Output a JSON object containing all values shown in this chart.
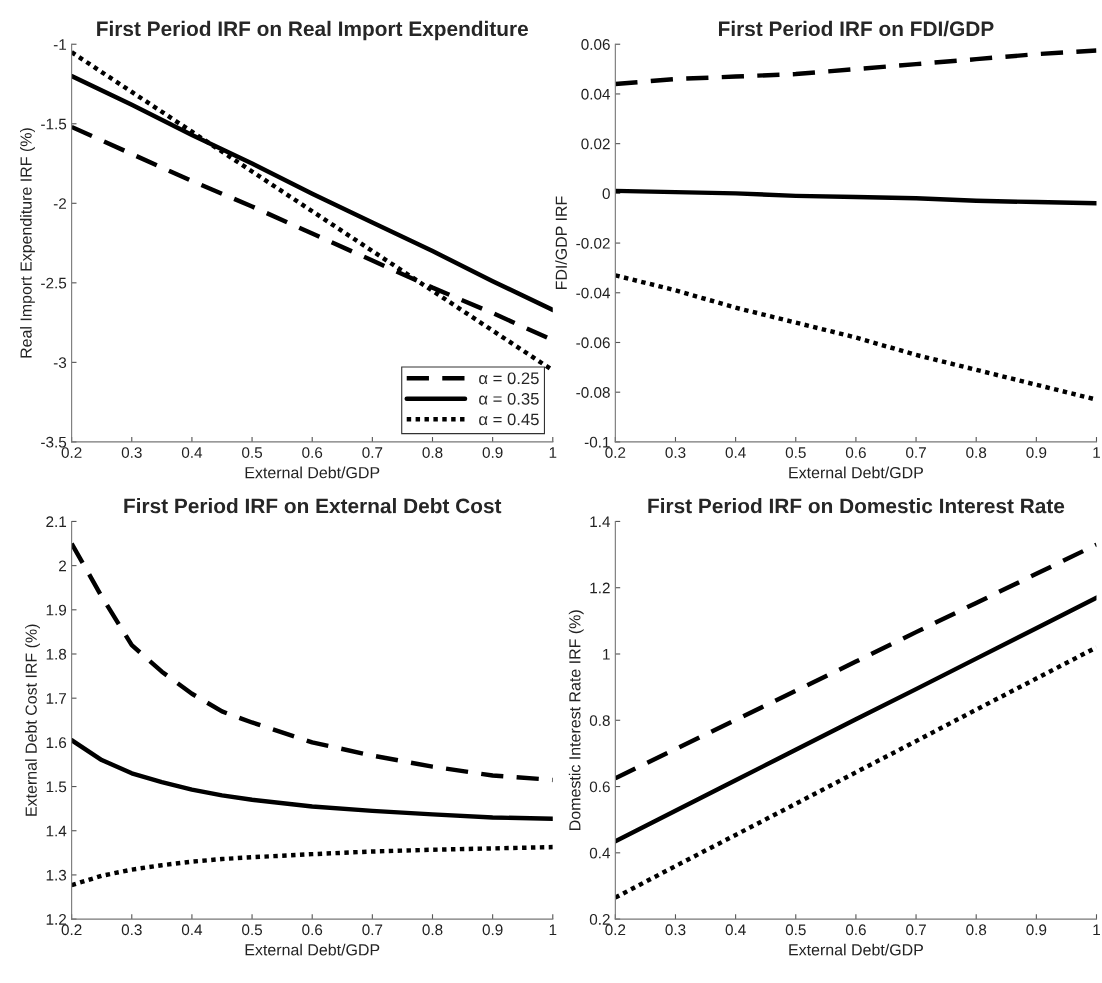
{
  "chart_data": [
    {
      "type": "line",
      "title": "First Period IRF on Real Import Expenditure",
      "xlabel": "External Debt/GDP",
      "ylabel": "Real Import Expenditure IRF (%)",
      "x": [
        0.2,
        0.3,
        0.4,
        0.5,
        0.6,
        0.7,
        0.8,
        0.9,
        1
      ],
      "xlim": [
        0.2,
        1
      ],
      "xticks": [
        0.2,
        0.3,
        0.4,
        0.5,
        0.6,
        0.7,
        0.8,
        0.9,
        1
      ],
      "ylim": [
        -3.5,
        -1
      ],
      "yticks": [
        -3.5,
        -3,
        -2.5,
        -2,
        -1.5,
        -1
      ],
      "grid": false,
      "legend": "bottom right",
      "series": [
        {
          "name": "α = 0.25",
          "color": "#000000",
          "line_style": "dashed",
          "values": [
            -1.52,
            -1.69,
            -1.86,
            -2.02,
            -2.19,
            -2.36,
            -2.53,
            -2.69,
            -2.86
          ]
        },
        {
          "name": "α = 0.35",
          "color": "#000000",
          "line_style": "solid",
          "values": [
            -1.2,
            -1.38,
            -1.57,
            -1.75,
            -1.94,
            -2.12,
            -2.3,
            -2.49,
            -2.67
          ]
        },
        {
          "name": "α = 0.45",
          "color": "#000000",
          "line_style": "dotted",
          "values": [
            -1.05,
            -1.3,
            -1.55,
            -1.8,
            -2.05,
            -2.3,
            -2.55,
            -2.8,
            -3.05
          ]
        }
      ]
    },
    {
      "type": "line",
      "title": "First Period IRF on FDI/GDP",
      "xlabel": "External Debt/GDP",
      "ylabel": "FDI/GDP IRF",
      "x": [
        0.2,
        0.3,
        0.4,
        0.5,
        0.6,
        0.7,
        0.8,
        0.9,
        1
      ],
      "xlim": [
        0.2,
        1
      ],
      "xticks": [
        0.2,
        0.3,
        0.4,
        0.5,
        0.6,
        0.7,
        0.8,
        0.9,
        1
      ],
      "ylim": [
        -0.1,
        0.06
      ],
      "yticks": [
        -0.1,
        -0.08,
        -0.06,
        -0.04,
        -0.02,
        0,
        0.02,
        0.04,
        0.06
      ],
      "grid": false,
      "series": [
        {
          "color": "#000000",
          "line_style": "dashed",
          "values": [
            0.044,
            0.046,
            0.047,
            0.048,
            0.05,
            0.052,
            0.054,
            0.056,
            0.0575
          ]
        },
        {
          "color": "#000000",
          "line_style": "solid",
          "values": [
            0.001,
            0.0005,
            0,
            -0.001,
            -0.0015,
            -0.002,
            -0.003,
            -0.0035,
            -0.004
          ]
        },
        {
          "color": "#000000",
          "line_style": "dotted",
          "values": [
            -0.033,
            -0.039,
            -0.046,
            -0.052,
            -0.058,
            -0.065,
            -0.071,
            -0.077,
            -0.083
          ]
        }
      ]
    },
    {
      "type": "line",
      "title": "First Period IRF on External Debt Cost",
      "xlabel": "External Debt/GDP",
      "ylabel": "External Debt Cost IRF (%)",
      "x": [
        0.2,
        0.25,
        0.3,
        0.35,
        0.4,
        0.45,
        0.5,
        0.6,
        0.7,
        0.8,
        0.9,
        1
      ],
      "xlim": [
        0.2,
        1
      ],
      "xticks": [
        0.2,
        0.3,
        0.4,
        0.5,
        0.6,
        0.7,
        0.8,
        0.9,
        1
      ],
      "ylim": [
        1.2,
        2.1
      ],
      "yticks": [
        1.2,
        1.3,
        1.4,
        1.5,
        1.6,
        1.7,
        1.8,
        1.9,
        2,
        2.1
      ],
      "grid": false,
      "series": [
        {
          "color": "#000000",
          "line_style": "dashed",
          "values": [
            2.05,
            1.93,
            1.82,
            1.76,
            1.71,
            1.67,
            1.645,
            1.6,
            1.57,
            1.545,
            1.525,
            1.515
          ]
        },
        {
          "color": "#000000",
          "line_style": "solid",
          "values": [
            1.605,
            1.56,
            1.53,
            1.51,
            1.493,
            1.48,
            1.47,
            1.455,
            1.445,
            1.437,
            1.43,
            1.427
          ]
        },
        {
          "color": "#000000",
          "line_style": "dotted",
          "values": [
            1.277,
            1.298,
            1.312,
            1.322,
            1.33,
            1.336,
            1.34,
            1.347,
            1.353,
            1.357,
            1.36,
            1.363
          ]
        }
      ]
    },
    {
      "type": "line",
      "title": "First Period IRF on Domestic Interest Rate",
      "xlabel": "External Debt/GDP",
      "ylabel": "Domestic Interest Rate IRF (%)",
      "x": [
        0.2,
        0.3,
        0.4,
        0.5,
        0.6,
        0.7,
        0.8,
        0.9,
        1
      ],
      "xlim": [
        0.2,
        1
      ],
      "xticks": [
        0.2,
        0.3,
        0.4,
        0.5,
        0.6,
        0.7,
        0.8,
        0.9,
        1
      ],
      "ylim": [
        0.2,
        1.4
      ],
      "yticks": [
        0.2,
        0.4,
        0.6,
        0.8,
        1,
        1.2,
        1.4
      ],
      "grid": false,
      "series": [
        {
          "color": "#000000",
          "line_style": "dashed",
          "values": [
            0.625,
            0.713,
            0.801,
            0.889,
            0.977,
            1.066,
            1.154,
            1.242,
            1.33
          ]
        },
        {
          "color": "#000000",
          "line_style": "solid",
          "values": [
            0.435,
            0.527,
            0.619,
            0.711,
            0.803,
            0.894,
            0.986,
            1.078,
            1.17
          ]
        },
        {
          "color": "#000000",
          "line_style": "dotted",
          "values": [
            0.265,
            0.36,
            0.454,
            0.548,
            0.643,
            0.737,
            0.832,
            0.926,
            1.02
          ]
        }
      ]
    }
  ]
}
